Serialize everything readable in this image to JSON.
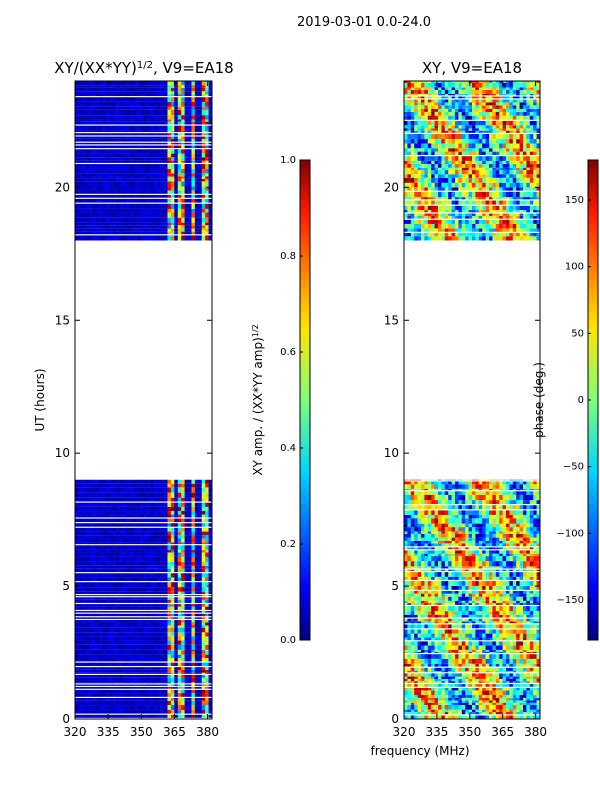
{
  "suptitle": "2019-03-01 0.0-24.0",
  "xlabel": "frequency (MHz)",
  "chart_data": [
    {
      "type": "heatmap",
      "name": "amp-panel",
      "title_text": "XY/(XX*YY)",
      "title_sup": "1/2",
      "title_suffix": ", V9=EA18",
      "ylabel": "UT (hours)",
      "xlim": [
        320,
        382
      ],
      "ylim": [
        0,
        24
      ],
      "xticks": [
        320,
        335,
        350,
        365,
        380
      ],
      "yticks": [
        0,
        5,
        10,
        15,
        20
      ],
      "data_hour_ranges": [
        [
          0.0,
          2.6
        ],
        [
          2.6,
          9.0
        ],
        [
          18.0,
          24.0
        ]
      ],
      "colorbar": {
        "label_text": "XY amp. / (XX*YY amp)",
        "label_sup": "1/2",
        "range": [
          0.0,
          1.0
        ],
        "ticks": [
          "0.0",
          "0.2",
          "0.4",
          "0.6",
          "0.8",
          "1.0"
        ],
        "tick_values": [
          0.0,
          0.2,
          0.4,
          0.6,
          0.8,
          1.0
        ]
      }
    },
    {
      "type": "heatmap",
      "name": "phase-panel",
      "title_text": "XY, V9=EA18",
      "ylabel": "",
      "xlim": [
        320,
        382
      ],
      "ylim": [
        0,
        24
      ],
      "xticks": [
        320,
        335,
        350,
        365,
        380
      ],
      "yticks": [
        0,
        5,
        10,
        15,
        20
      ],
      "data_hour_ranges": [
        [
          0.0,
          2.6
        ],
        [
          2.6,
          9.0
        ],
        [
          18.0,
          24.0
        ]
      ],
      "colorbar": {
        "label_text": "phase (deg.)",
        "range": [
          -180,
          180
        ],
        "ticks": [
          "−150",
          "−100",
          "−50",
          "0",
          "50",
          "100",
          "150"
        ],
        "tick_values": [
          -150,
          -100,
          -50,
          0,
          50,
          100,
          150
        ]
      }
    }
  ]
}
